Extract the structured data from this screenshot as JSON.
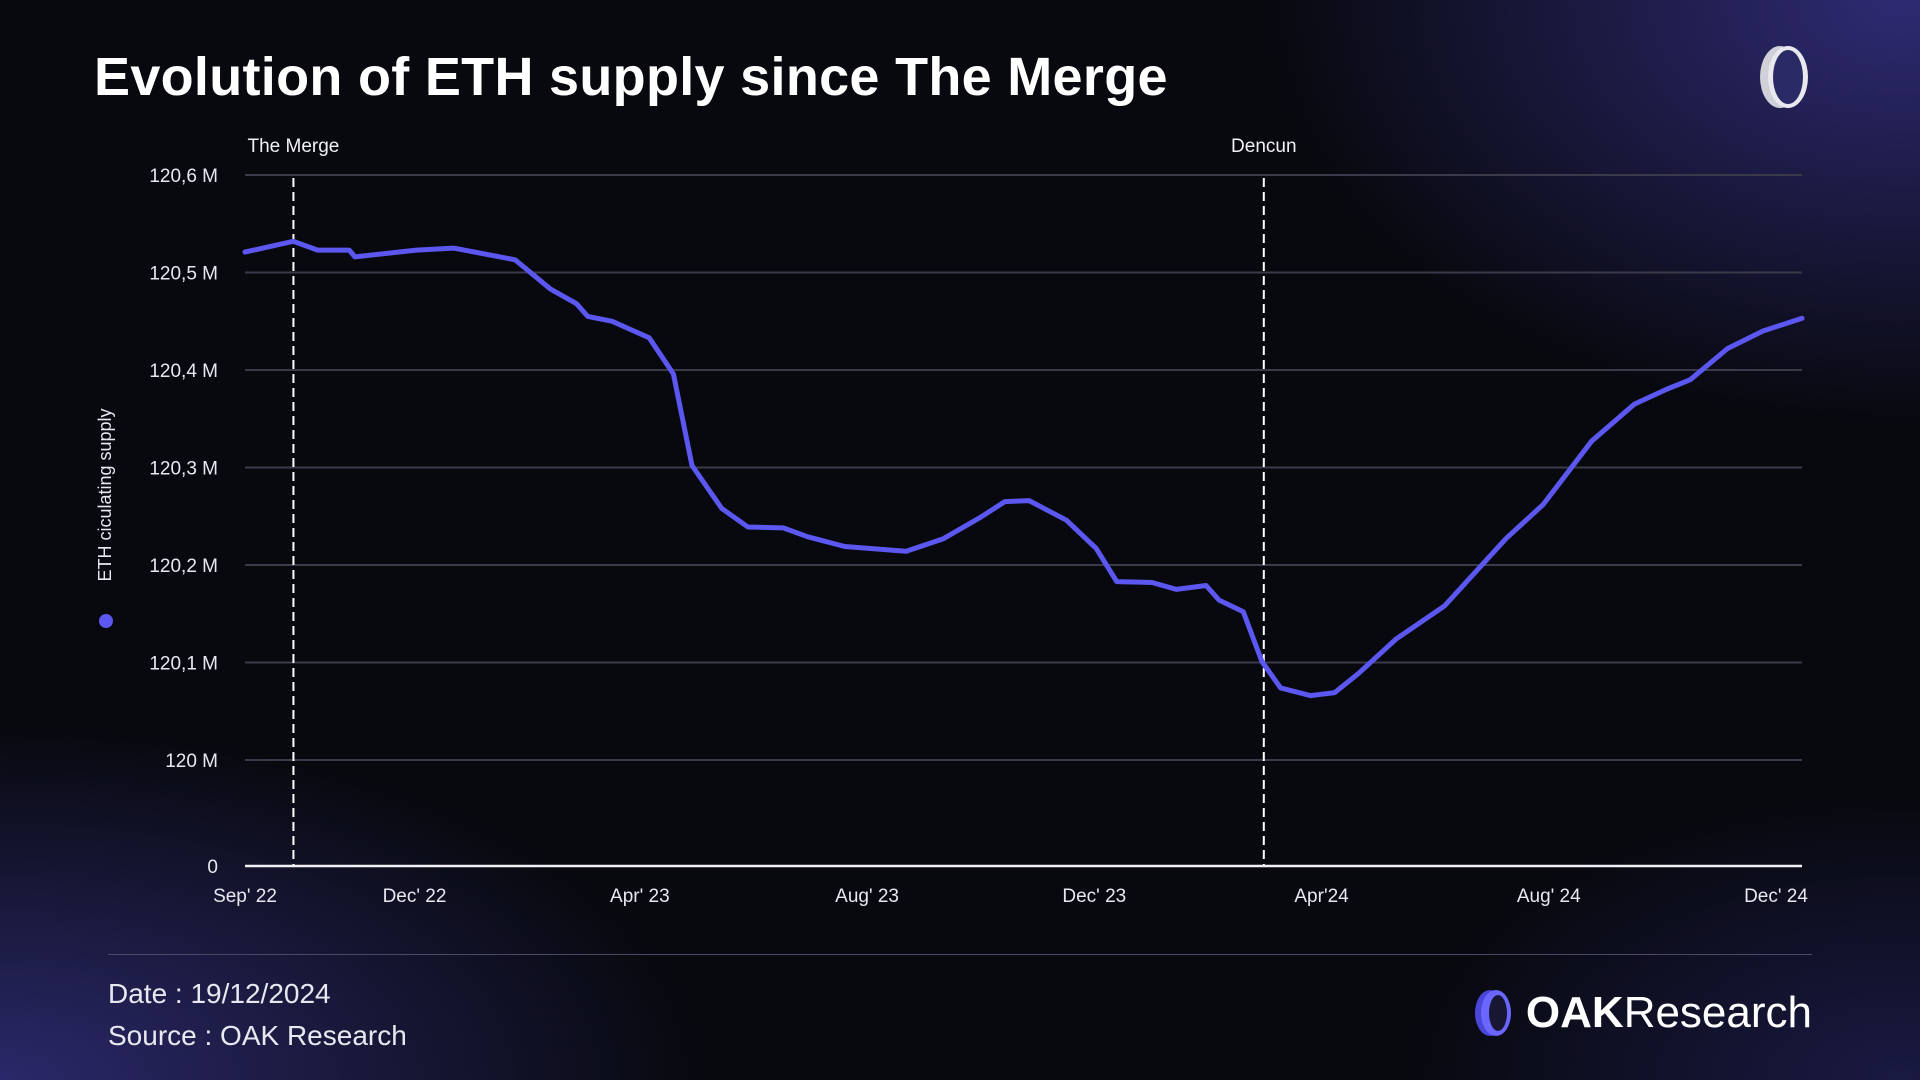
{
  "title": "Evolution of ETH supply since The Merge",
  "footer": {
    "date": "Date : 19/12/2024",
    "source": "Source : OAK Research"
  },
  "brand": {
    "name_bold": "OAK",
    "name_rest": "Research"
  },
  "colors": {
    "line": "#5b57f0",
    "accent": "#5b57f0",
    "grid": "#3a3a4a"
  },
  "chart_data": {
    "type": "line",
    "title": "Evolution of ETH supply since The Merge",
    "ylabel": "ETH ciculating supply",
    "legend": {
      "position": "left",
      "marker": "dot"
    },
    "grid": true,
    "ylim": [
      120.0,
      120.6
    ],
    "ytick_labels": [
      "0",
      "120 M",
      "120,1 M",
      "120,2 M",
      "120,3 M",
      "120,4 M",
      "120,5 M",
      "120,6 M"
    ],
    "ytick_values": [
      null,
      120.0,
      120.1,
      120.2,
      120.3,
      120.4,
      120.5,
      120.6
    ],
    "xtick_labels": [
      "Sep' 22",
      "Dec' 22",
      "Apr' 23",
      "Aug' 23",
      "Dec' 23",
      "Apr'24",
      "Aug' 24",
      "Dec' 24"
    ],
    "xtick_dates": [
      "2022-09-01",
      "2022-12-01",
      "2023-04-01",
      "2023-08-01",
      "2023-12-01",
      "2024-04-01",
      "2024-08-01",
      "2024-12-01"
    ],
    "annotations": [
      {
        "label": "The Merge",
        "date": "2022-09-27"
      },
      {
        "label": "Dencun",
        "date": "2024-03-01"
      }
    ],
    "unit": "M ETH",
    "series": [
      {
        "x": [
          "2022-09-01",
          "2022-09-27",
          "2022-10-10",
          "2022-10-27",
          "2022-10-30",
          "2022-12-02",
          "2022-12-22",
          "2023-01-24",
          "2023-02-12",
          "2023-02-26",
          "2023-03-04",
          "2023-03-17",
          "2023-04-06",
          "2023-04-19",
          "2023-04-29",
          "2023-05-15",
          "2023-05-29",
          "2023-06-17",
          "2023-06-30",
          "2023-07-20",
          "2023-08-22",
          "2023-09-11",
          "2023-10-01",
          "2023-10-14",
          "2023-10-27",
          "2023-11-16",
          "2023-12-02",
          "2023-12-13",
          "2024-01-01",
          "2024-01-14",
          "2024-01-30",
          "2024-02-06",
          "2024-02-19",
          "2024-02-29",
          "2024-03-10",
          "2024-03-26",
          "2024-04-08",
          "2024-04-21",
          "2024-05-11",
          "2024-06-06",
          "2024-07-09",
          "2024-07-29",
          "2024-08-24",
          "2024-09-16",
          "2024-10-03",
          "2024-10-16",
          "2024-11-05",
          "2024-11-24",
          "2024-12-15"
        ],
        "values": [
          120.521,
          120.532,
          120.523,
          120.523,
          120.516,
          120.523,
          120.525,
          120.513,
          120.483,
          120.468,
          120.455,
          120.45,
          120.433,
          120.396,
          120.302,
          120.258,
          120.239,
          120.238,
          120.229,
          120.219,
          120.214,
          120.227,
          120.249,
          120.265,
          120.266,
          120.246,
          120.217,
          120.183,
          120.182,
          120.175,
          120.179,
          120.164,
          120.152,
          120.101,
          120.074,
          120.066,
          120.069,
          120.089,
          120.124,
          120.158,
          120.227,
          120.262,
          120.327,
          120.365,
          120.38,
          120.39,
          120.422,
          120.44,
          120.453
        ]
      }
    ]
  }
}
